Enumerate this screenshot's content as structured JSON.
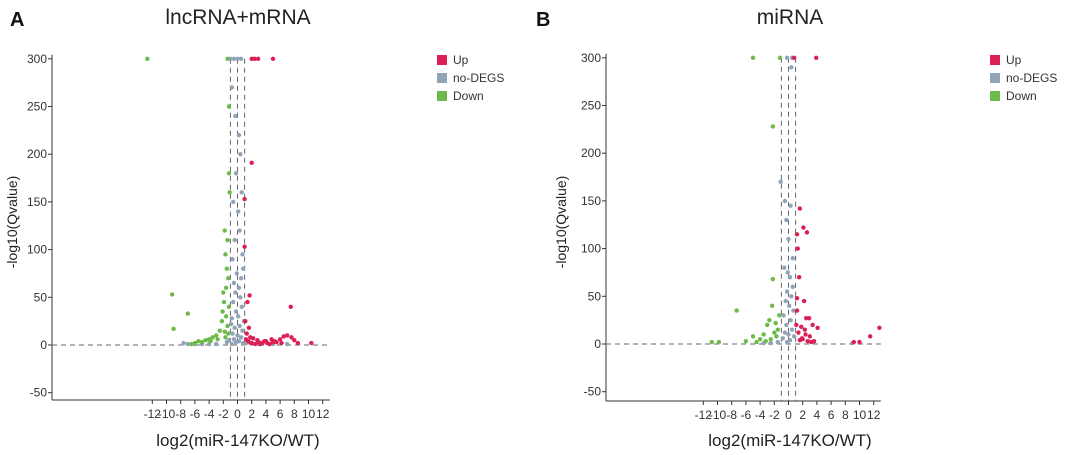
{
  "colors": {
    "up": "#dc1f55",
    "nodeg": "#8fa4b6",
    "down": "#6cbb4a"
  },
  "panels": [
    {
      "letter": "A",
      "chart_data": {
        "type": "scatter",
        "title": "lncRNA+mRNA",
        "xlabel": "log2(miR-147KO/WT)",
        "ylabel": "-log10(Qvalue)",
        "xlim": [
          -13,
          13
        ],
        "ylim": [
          -50,
          300
        ],
        "xticks": [
          -12,
          -10,
          -8,
          -6,
          -4,
          -2,
          0,
          2,
          4,
          6,
          8,
          10,
          12
        ],
        "yticks": [
          -50,
          0,
          50,
          100,
          150,
          200,
          250,
          300
        ],
        "vlines": [
          -1,
          0,
          1
        ],
        "hline": 0,
        "legend": [
          "Up",
          "no-DEGS",
          "Down"
        ],
        "series": [
          {
            "name": "Up",
            "color_key": "up",
            "points": [
              [
                2,
                300
              ],
              [
                2.4,
                300
              ],
              [
                2.9,
                300
              ],
              [
                5,
                300
              ],
              [
                2,
                191
              ],
              [
                1,
                153
              ],
              [
                1,
                103
              ],
              [
                1.4,
                45
              ],
              [
                1.7,
                52
              ],
              [
                7.5,
                40
              ],
              [
                2,
                2
              ],
              [
                3,
                3
              ],
              [
                4,
                4
              ],
              [
                5,
                3
              ],
              [
                6,
                6
              ],
              [
                6.5,
                9
              ],
              [
                7,
                10
              ],
              [
                7.6,
                8
              ],
              [
                8,
                5
              ],
              [
                8.5,
                2
              ],
              [
                1.3,
                12
              ],
              [
                1.6,
                18
              ],
              [
                2.5,
                1
              ],
              [
                3.5,
                2
              ],
              [
                4.5,
                1
              ],
              [
                5.5,
                3
              ],
              [
                10.4,
                2
              ],
              [
                1.2,
                6
              ],
              [
                1.8,
                8
              ],
              [
                2.8,
                5
              ],
              [
                3.8,
                4
              ],
              [
                4.8,
                6
              ],
              [
                1.1,
                25
              ],
              [
                1.5,
                4
              ],
              [
                1.9,
                2
              ],
              [
                2.2,
                7
              ],
              [
                3.2,
                1
              ],
              [
                4.2,
                2
              ],
              [
                5.2,
                4
              ],
              [
                6.2,
                2
              ]
            ]
          },
          {
            "name": "no-DEGS",
            "color_key": "nodeg",
            "points": [
              [
                -1,
                300
              ],
              [
                -0.5,
                300
              ],
              [
                0,
                300
              ],
              [
                0.5,
                300
              ],
              [
                -0.8,
                270
              ],
              [
                -0.3,
                240
              ],
              [
                0.2,
                220
              ],
              [
                0.4,
                200
              ],
              [
                -0.2,
                180
              ],
              [
                0.6,
                160
              ],
              [
                -0.6,
                150
              ],
              [
                0.1,
                140
              ],
              [
                0.3,
                120
              ],
              [
                -0.4,
                110
              ],
              [
                0.7,
                95
              ],
              [
                -0.7,
                90
              ],
              [
                0.8,
                80
              ],
              [
                -0.1,
                75
              ],
              [
                0.5,
                70
              ],
              [
                -0.5,
                65
              ],
              [
                0.2,
                60
              ],
              [
                -0.3,
                55
              ],
              [
                0.4,
                50
              ],
              [
                -0.6,
                45
              ],
              [
                0.6,
                40
              ],
              [
                -0.2,
                35
              ],
              [
                0.1,
                30
              ],
              [
                -0.8,
                28
              ],
              [
                0.9,
                25
              ],
              [
                -0.9,
                22
              ],
              [
                0.3,
                20
              ],
              [
                -0.4,
                18
              ],
              [
                0.7,
                15
              ],
              [
                -0.7,
                12
              ],
              [
                0,
                10
              ],
              [
                0.5,
                8
              ],
              [
                -0.5,
                6
              ],
              [
                0.2,
                4
              ],
              [
                -0.2,
                3
              ],
              [
                0.8,
                2
              ],
              [
                -0.8,
                1
              ],
              [
                -3,
                1
              ],
              [
                -4,
                1
              ],
              [
                -5,
                1
              ],
              [
                -6,
                1
              ],
              [
                -7,
                1
              ],
              [
                -7.6,
                2
              ],
              [
                3,
                1
              ],
              [
                5,
                1
              ],
              [
                7,
                1
              ],
              [
                -1.2,
                5
              ],
              [
                -1.5,
                3
              ],
              [
                1.2,
                2
              ],
              [
                1.5,
                3
              ]
            ]
          },
          {
            "name": "Down",
            "color_key": "down",
            "points": [
              [
                -12.7,
                300
              ],
              [
                -1.4,
                300
              ],
              [
                -1.2,
                250
              ],
              [
                -1.2,
                180
              ],
              [
                -1.1,
                160
              ],
              [
                -1.8,
                120
              ],
              [
                -1.4,
                110
              ],
              [
                -9.2,
                53
              ],
              [
                -1.7,
                95
              ],
              [
                -1.5,
                80
              ],
              [
                -1.3,
                70
              ],
              [
                -2,
                55
              ],
              [
                -1.9,
                45
              ],
              [
                -7,
                33
              ],
              [
                -9,
                17
              ],
              [
                -1.6,
                30
              ],
              [
                -2.2,
                25
              ],
              [
                -2.5,
                15
              ],
              [
                -3,
                10
              ],
              [
                -3.5,
                8
              ],
              [
                -4,
                6
              ],
              [
                -4.5,
                5
              ],
              [
                -5,
                3
              ],
              [
                -5.5,
                4
              ],
              [
                -6,
                2
              ],
              [
                -6.5,
                1
              ],
              [
                -1.4,
                20
              ],
              [
                -1.8,
                14
              ],
              [
                -2.8,
                6
              ],
              [
                -3.8,
                4
              ],
              [
                -1.2,
                40
              ],
              [
                -1.6,
                60
              ],
              [
                -2.1,
                35
              ],
              [
                -1.3,
                12
              ],
              [
                -1.7,
                8
              ]
            ]
          }
        ]
      }
    },
    {
      "letter": "B",
      "chart_data": {
        "type": "scatter",
        "title": "miRNA",
        "xlabel": "log2(miR-147KO/WT)",
        "ylabel": "-log10(Qvalue)",
        "xlim": [
          -13,
          13
        ],
        "ylim": [
          -50,
          300
        ],
        "xticks": [
          -12,
          -10,
          -8,
          -6,
          -4,
          -2,
          0,
          2,
          4,
          6,
          8,
          10,
          12
        ],
        "yticks": [
          -50,
          0,
          50,
          100,
          150,
          200,
          250,
          300
        ],
        "vlines": [
          -1,
          0,
          1
        ],
        "hline": 0,
        "legend": [
          "Up",
          "no-DEGS",
          "Down"
        ],
        "series": [
          {
            "name": "Up",
            "color_key": "up",
            "points": [
              [
                3.9,
                300
              ],
              [
                0.8,
                300
              ],
              [
                1.6,
                142
              ],
              [
                2.1,
                122
              ],
              [
                1.2,
                115
              ],
              [
                2.6,
                117
              ],
              [
                1.3,
                100
              ],
              [
                1.5,
                70
              ],
              [
                1.2,
                48
              ],
              [
                2.2,
                45
              ],
              [
                2.5,
                27
              ],
              [
                2.9,
                27
              ],
              [
                3.4,
                20
              ],
              [
                4.1,
                17
              ],
              [
                12.8,
                17
              ],
              [
                11.5,
                8
              ],
              [
                10,
                2
              ],
              [
                9.2,
                2
              ],
              [
                2,
                5
              ],
              [
                2.4,
                10
              ],
              [
                3,
                8
              ],
              [
                1.1,
                20
              ],
              [
                1.4,
                12
              ],
              [
                1.8,
                18
              ],
              [
                2.7,
                3
              ],
              [
                3.2,
                2
              ],
              [
                1.6,
                4
              ],
              [
                1.9,
                6
              ],
              [
                3.6,
                3
              ],
              [
                1.2,
                35
              ],
              [
                2.3,
                15
              ]
            ]
          },
          {
            "name": "no-DEGS",
            "color_key": "nodeg",
            "points": [
              [
                -0.2,
                300
              ],
              [
                0.5,
                300
              ],
              [
                0.4,
                290
              ],
              [
                -1.1,
                170
              ],
              [
                -0.5,
                150
              ],
              [
                0.3,
                145
              ],
              [
                -0.3,
                130
              ],
              [
                0,
                110
              ],
              [
                0.6,
                90
              ],
              [
                -0.6,
                80
              ],
              [
                0.2,
                70
              ],
              [
                -0.2,
                55
              ],
              [
                0.4,
                50
              ],
              [
                -0.4,
                45
              ],
              [
                0.1,
                40
              ],
              [
                0.7,
                35
              ],
              [
                -0.7,
                30
              ],
              [
                0.3,
                25
              ],
              [
                -0.3,
                20
              ],
              [
                0.5,
                15
              ],
              [
                -0.5,
                12
              ],
              [
                0,
                10
              ],
              [
                0.8,
                8
              ],
              [
                -0.8,
                6
              ],
              [
                0.2,
                4
              ],
              [
                -0.2,
                2
              ],
              [
                -1.5,
                2
              ],
              [
                -2.5,
                1
              ],
              [
                -3.5,
                1
              ],
              [
                9,
                1
              ],
              [
                0.6,
                60
              ],
              [
                -0.1,
                75
              ]
            ]
          },
          {
            "name": "Down",
            "color_key": "down",
            "points": [
              [
                -5,
                300
              ],
              [
                -1.2,
                300
              ],
              [
                -2.2,
                228
              ],
              [
                -7.3,
                35
              ],
              [
                -2.2,
                68
              ],
              [
                -2.7,
                25
              ],
              [
                -3,
                20
              ],
              [
                -3.5,
                10
              ],
              [
                -4,
                5
              ],
              [
                -5,
                8
              ],
              [
                -6,
                3
              ],
              [
                -9.8,
                2
              ],
              [
                -10.8,
                2
              ],
              [
                -1.5,
                15
              ],
              [
                -1.8,
                22
              ],
              [
                -2,
                12
              ],
              [
                -2.5,
                5
              ],
              [
                -3.2,
                3
              ],
              [
                -4.5,
                2
              ],
              [
                -1.3,
                30
              ],
              [
                -2.3,
                40
              ],
              [
                -1.7,
                8
              ]
            ]
          }
        ]
      }
    }
  ]
}
